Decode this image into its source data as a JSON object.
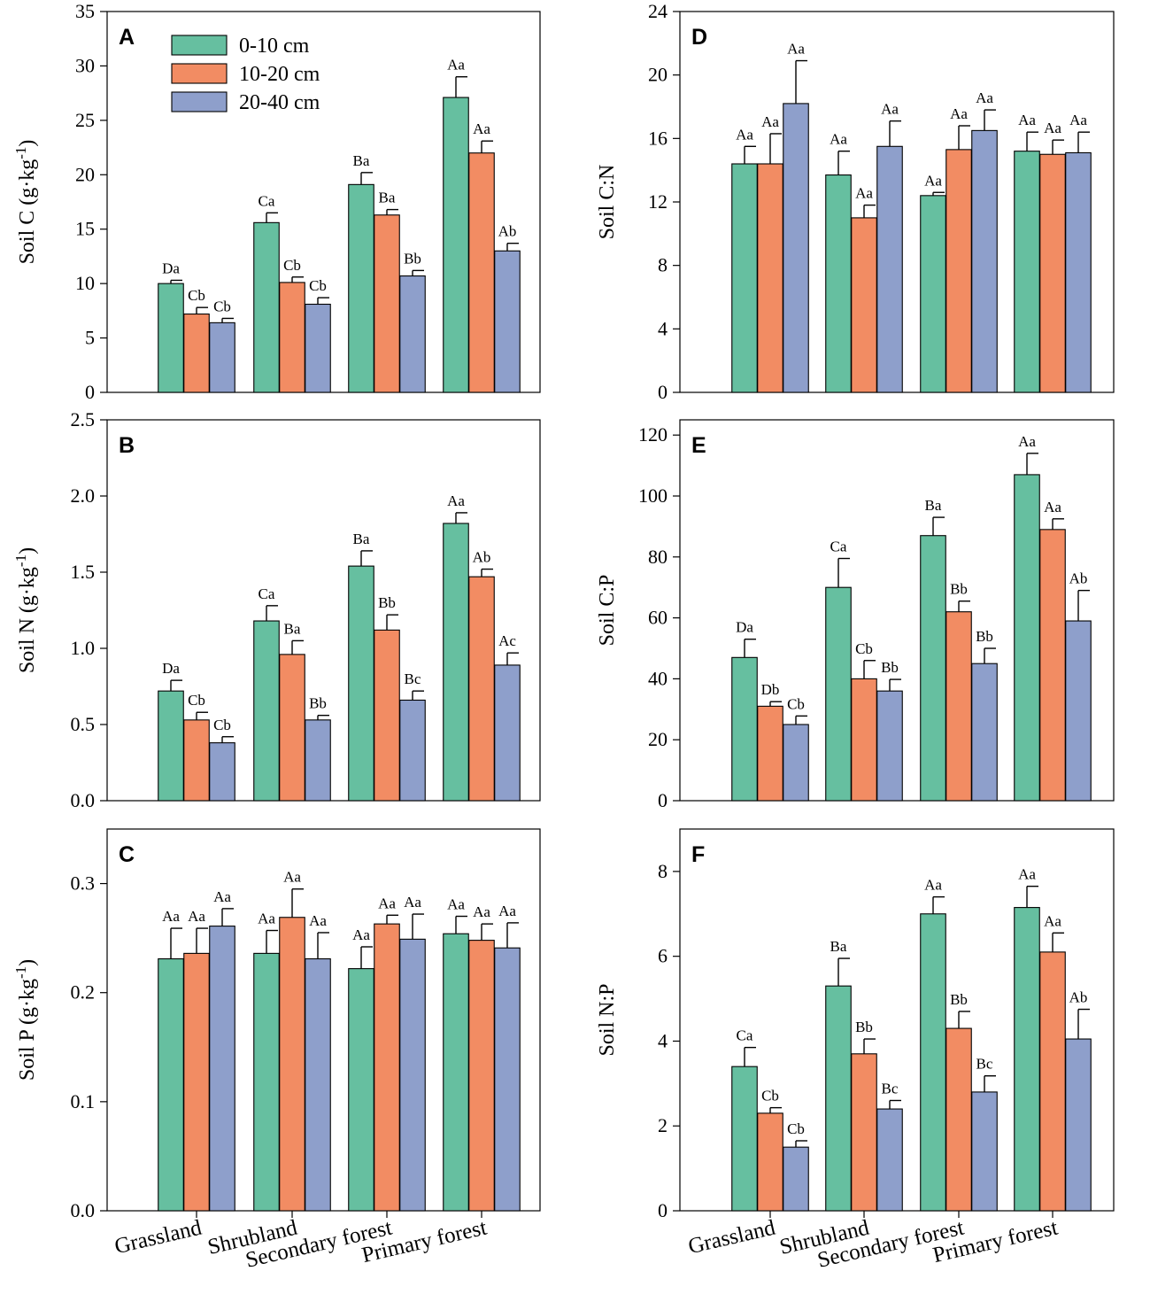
{
  "chart_data": {
    "type": "bar",
    "categories": [
      "Grassland",
      "Shrubland",
      "Secondary forest",
      "Primary forest"
    ],
    "legend": [
      {
        "label": "0-10 cm",
        "color": "#66BFA0"
      },
      {
        "label": "10-20 cm",
        "color": "#F28C63"
      },
      {
        "label": "20-40 cm",
        "color": "#8E9FCB"
      }
    ],
    "panels": [
      {
        "letter": "A",
        "ylabel": "Soil C (g·kg",
        "ylabel_sup": "-1",
        "ylabel_close": ")",
        "ylim": [
          0,
          35
        ],
        "yticks": [
          "0",
          "5",
          "10",
          "15",
          "20",
          "25",
          "30",
          "35"
        ],
        "series": [
          {
            "name": "0-10 cm",
            "values": [
              10.0,
              15.6,
              19.1,
              27.1
            ],
            "errors": [
              0.3,
              0.9,
              1.1,
              1.9
            ],
            "labels": [
              "Da",
              "Ca",
              "Ba",
              "Aa"
            ]
          },
          {
            "name": "10-20 cm",
            "values": [
              7.2,
              10.1,
              16.3,
              22.0
            ],
            "errors": [
              0.6,
              0.5,
              0.5,
              1.1
            ],
            "labels": [
              "Cb",
              "Cb",
              "Ba",
              "Aa"
            ]
          },
          {
            "name": "20-40 cm",
            "values": [
              6.4,
              8.1,
              10.7,
              13.0
            ],
            "errors": [
              0.4,
              0.6,
              0.5,
              0.7
            ],
            "labels": [
              "Cb",
              "Cb",
              "Bb",
              "Ab"
            ]
          }
        ]
      },
      {
        "letter": "B",
        "ylabel": "Soil N (g·kg",
        "ylabel_sup": "-1",
        "ylabel_close": ")",
        "ylim": [
          0,
          2.5
        ],
        "yticks": [
          "0.0",
          "0.5",
          "1.0",
          "1.5",
          "2.0",
          "2.5"
        ],
        "series": [
          {
            "name": "0-10 cm",
            "values": [
              0.72,
              1.18,
              1.54,
              1.82
            ],
            "errors": [
              0.07,
              0.1,
              0.1,
              0.07
            ],
            "labels": [
              "Da",
              "Ca",
              "Ba",
              "Aa"
            ]
          },
          {
            "name": "10-20 cm",
            "values": [
              0.53,
              0.96,
              1.12,
              1.47
            ],
            "errors": [
              0.05,
              0.09,
              0.1,
              0.05
            ],
            "labels": [
              "Cb",
              "Ba",
              "Bb",
              "Ab"
            ]
          },
          {
            "name": "20-40 cm",
            "values": [
              0.38,
              0.53,
              0.66,
              0.89
            ],
            "errors": [
              0.04,
              0.03,
              0.06,
              0.08
            ],
            "labels": [
              "Cb",
              "Bb",
              "Bc",
              "Ac"
            ]
          }
        ]
      },
      {
        "letter": "C",
        "ylabel": "Soil P (g·kg",
        "ylabel_sup": "-1",
        "ylabel_close": ")",
        "ylim": [
          0,
          0.35
        ],
        "yticks": [
          "0.0",
          "0.1",
          "0.2",
          "0.3"
        ],
        "series": [
          {
            "name": "0-10 cm",
            "values": [
              0.231,
              0.236,
              0.222,
              0.254
            ],
            "errors": [
              0.028,
              0.021,
              0.02,
              0.016
            ],
            "labels": [
              "Aa",
              "Aa",
              "Aa",
              "Aa"
            ]
          },
          {
            "name": "10-20 cm",
            "values": [
              0.236,
              0.269,
              0.263,
              0.248
            ],
            "errors": [
              0.023,
              0.026,
              0.008,
              0.015
            ],
            "labels": [
              "Aa",
              "Aa",
              "Aa",
              "Aa"
            ]
          },
          {
            "name": "20-40 cm",
            "values": [
              0.261,
              0.231,
              0.249,
              0.241
            ],
            "errors": [
              0.016,
              0.024,
              0.023,
              0.023
            ],
            "labels": [
              "Aa",
              "Aa",
              "Aa",
              "Aa"
            ]
          }
        ]
      },
      {
        "letter": "D",
        "ylabel": "Soil C:N",
        "ylim": [
          0,
          24
        ],
        "yticks": [
          "0",
          "4",
          "8",
          "12",
          "16",
          "20",
          "24"
        ],
        "series": [
          {
            "name": "0-10 cm",
            "values": [
              14.4,
              13.7,
              12.4,
              15.2
            ],
            "errors": [
              1.1,
              1.5,
              0.2,
              1.2
            ],
            "labels": [
              "Aa",
              "Aa",
              "Aa",
              "Aa"
            ]
          },
          {
            "name": "10-20 cm",
            "values": [
              14.4,
              11.0,
              15.3,
              15.0
            ],
            "errors": [
              1.9,
              0.8,
              1.5,
              0.9
            ],
            "labels": [
              "Aa",
              "Aa",
              "Aa",
              "Aa"
            ]
          },
          {
            "name": "20-40 cm",
            "values": [
              18.2,
              15.5,
              16.5,
              15.1
            ],
            "errors": [
              2.7,
              1.6,
              1.3,
              1.3
            ],
            "labels": [
              "Aa",
              "Aa",
              "Aa",
              "Aa"
            ]
          }
        ]
      },
      {
        "letter": "E",
        "ylabel": "Soil C:P",
        "ylim": [
          0,
          125
        ],
        "yticks": [
          "0",
          "20",
          "40",
          "60",
          "80",
          "100",
          "120"
        ],
        "series": [
          {
            "name": "0-10 cm",
            "values": [
              47,
              70,
              87,
              107
            ],
            "errors": [
              6,
              9.5,
              6,
              7
            ],
            "labels": [
              "Da",
              "Ca",
              "Ba",
              "Aa"
            ]
          },
          {
            "name": "10-20 cm",
            "values": [
              31,
              40,
              62,
              89
            ],
            "errors": [
              1.5,
              6,
              3.5,
              3.5
            ],
            "labels": [
              "Db",
              "Cb",
              "Bb",
              "Aa"
            ]
          },
          {
            "name": "20-40 cm",
            "values": [
              25,
              36,
              45,
              59
            ],
            "errors": [
              2.8,
              3.8,
              5,
              10
            ],
            "labels": [
              "Cb",
              "Bb",
              "Bb",
              "Ab"
            ]
          }
        ]
      },
      {
        "letter": "F",
        "ylabel": "Soil N:P",
        "ylim": [
          0,
          9
        ],
        "yticks": [
          "0",
          "2",
          "4",
          "6",
          "8"
        ],
        "series": [
          {
            "name": "0-10 cm",
            "values": [
              3.4,
              5.3,
              7.0,
              7.15
            ],
            "errors": [
              0.45,
              0.65,
              0.4,
              0.5
            ],
            "labels": [
              "Ca",
              "Ba",
              "Aa",
              "Aa"
            ]
          },
          {
            "name": "10-20 cm",
            "values": [
              2.3,
              3.7,
              4.3,
              6.1
            ],
            "errors": [
              0.13,
              0.35,
              0.4,
              0.45
            ],
            "labels": [
              "Cb",
              "Bb",
              "Bb",
              "Aa"
            ]
          },
          {
            "name": "20-40 cm",
            "values": [
              1.5,
              2.4,
              2.8,
              4.05
            ],
            "errors": [
              0.15,
              0.2,
              0.38,
              0.7
            ],
            "labels": [
              "Cb",
              "Bc",
              "Bc",
              "Ab"
            ]
          }
        ]
      }
    ]
  }
}
